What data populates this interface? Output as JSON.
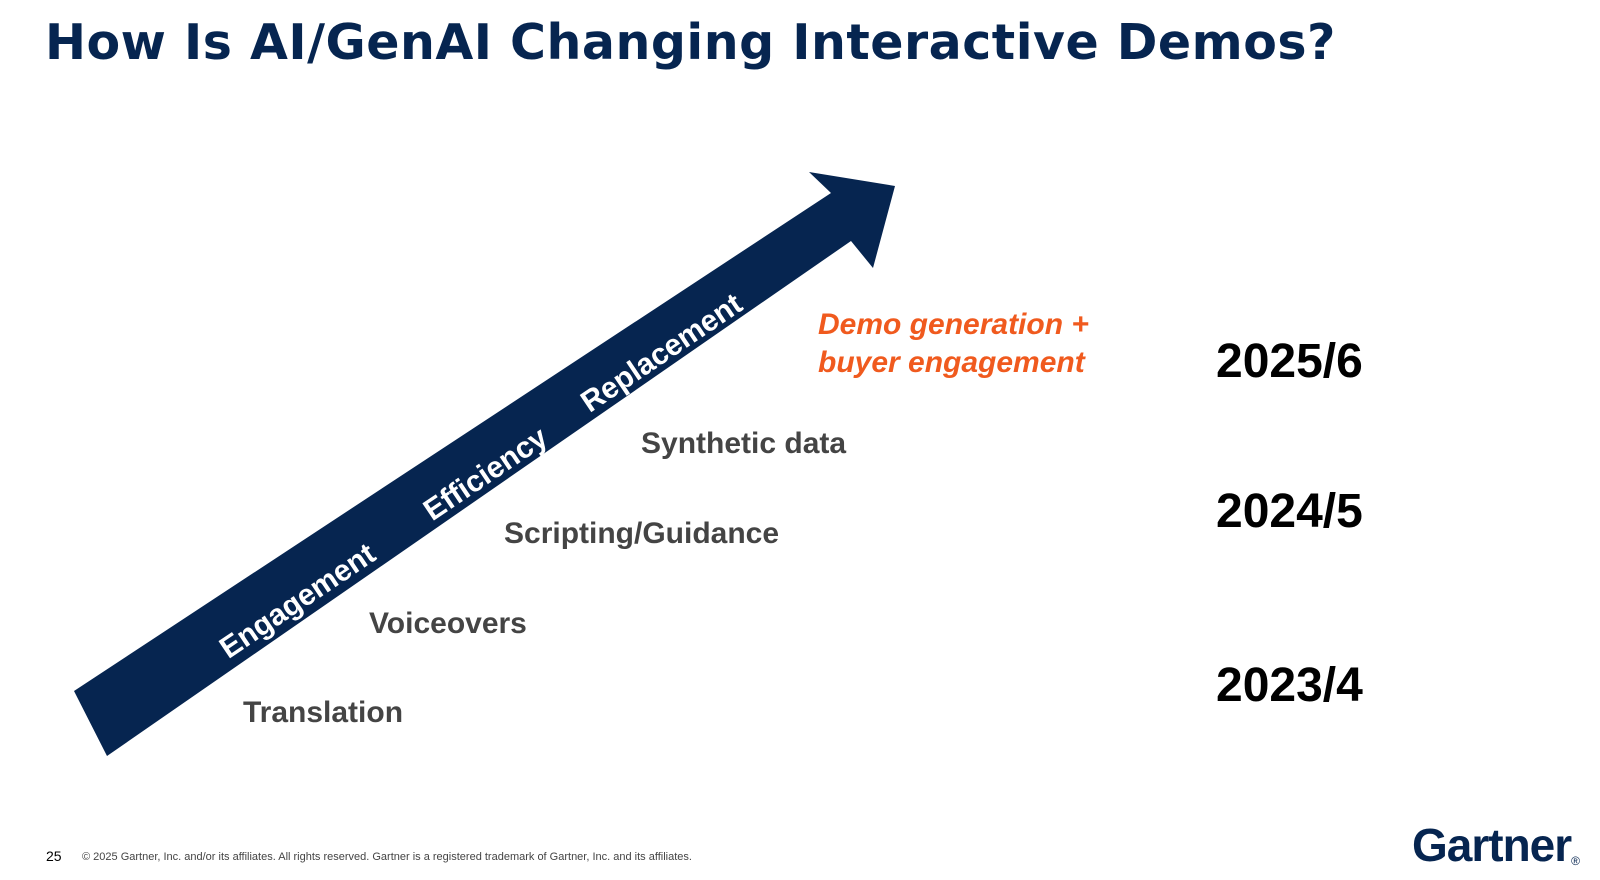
{
  "title": "How Is AI/GenAI Changing Interactive Demos?",
  "arrow": {
    "color": "#062550",
    "labels": [
      "Engagement",
      "Efficiency",
      "Replacement"
    ]
  },
  "steps": [
    "Translation",
    "Voiceovers",
    "Scripting/Guidance",
    "Synthetic data"
  ],
  "highlight": {
    "line1": "Demo generation +",
    "line2": "buyer engagement",
    "color": "#f05a1e"
  },
  "years": [
    "2025/6",
    "2024/5",
    "2023/4"
  ],
  "footer": {
    "page_number": "25",
    "copyright": "© 2025 Gartner, Inc. and/or its affiliates. All rights reserved. Gartner is a registered trademark of Gartner, Inc. and its affiliates.",
    "logo_text": "Gartner",
    "logo_mark": "®"
  }
}
